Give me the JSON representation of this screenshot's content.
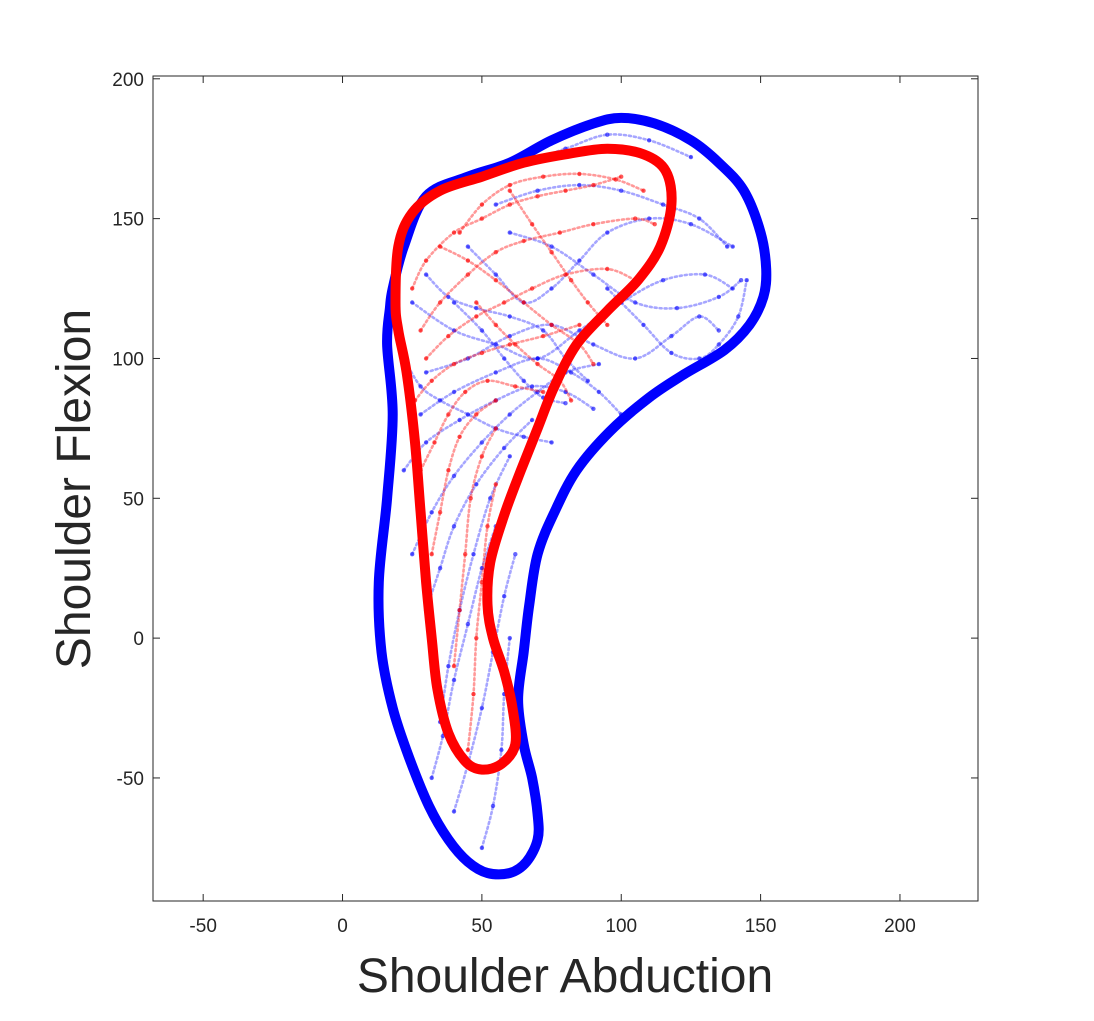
{
  "chart_data": {
    "type": "scatter",
    "title": "",
    "xlabel": "Shoulder Abduction",
    "ylabel": "Shoulder Flexion",
    "xlim": [
      -68,
      228
    ],
    "ylim": [
      -94,
      201
    ],
    "xticks": [
      -50,
      0,
      50,
      100,
      150,
      200
    ],
    "yticks": [
      -50,
      0,
      50,
      100,
      150,
      200
    ],
    "grid": false,
    "legend": "none",
    "series": [
      {
        "kind": "boundary",
        "color": "#0000ff",
        "points": [
          [
            18,
            125
          ],
          [
            22,
            140
          ],
          [
            30,
            158
          ],
          [
            45,
            165
          ],
          [
            60,
            170
          ],
          [
            75,
            178
          ],
          [
            90,
            184
          ],
          [
            100,
            186
          ],
          [
            112,
            184
          ],
          [
            125,
            178
          ],
          [
            135,
            170
          ],
          [
            144,
            160
          ],
          [
            150,
            145
          ],
          [
            152,
            132
          ],
          [
            151,
            122
          ],
          [
            146,
            112
          ],
          [
            137,
            103
          ],
          [
            122,
            94
          ],
          [
            110,
            86
          ],
          [
            96,
            74
          ],
          [
            84,
            60
          ],
          [
            76,
            45
          ],
          [
            70,
            30
          ],
          [
            67,
            12
          ],
          [
            65,
            -5
          ],
          [
            63,
            -22
          ],
          [
            65,
            -38
          ],
          [
            68,
            -50
          ],
          [
            70,
            -63
          ],
          [
            70,
            -72
          ],
          [
            66,
            -80
          ],
          [
            60,
            -84
          ],
          [
            52,
            -84
          ],
          [
            45,
            -80
          ],
          [
            38,
            -72
          ],
          [
            31,
            -60
          ],
          [
            24,
            -43
          ],
          [
            18,
            -25
          ],
          [
            14,
            -5
          ],
          [
            13,
            20
          ],
          [
            16,
            50
          ],
          [
            18,
            80
          ],
          [
            16,
            105
          ],
          [
            17,
            118
          ]
        ]
      },
      {
        "kind": "boundary",
        "color": "#ff0000",
        "points": [
          [
            19,
            120
          ],
          [
            20,
            140
          ],
          [
            25,
            152
          ],
          [
            35,
            160
          ],
          [
            50,
            165
          ],
          [
            65,
            170
          ],
          [
            80,
            173
          ],
          [
            95,
            175
          ],
          [
            108,
            173
          ],
          [
            116,
            167
          ],
          [
            118,
            155
          ],
          [
            114,
            140
          ],
          [
            106,
            128
          ],
          [
            95,
            117
          ],
          [
            84,
            105
          ],
          [
            76,
            90
          ],
          [
            70,
            75
          ],
          [
            64,
            60
          ],
          [
            58,
            44
          ],
          [
            53,
            27
          ],
          [
            52,
            12
          ],
          [
            54,
            0
          ],
          [
            58,
            -12
          ],
          [
            61,
            -25
          ],
          [
            62,
            -38
          ],
          [
            57,
            -45
          ],
          [
            50,
            -47
          ],
          [
            44,
            -44
          ],
          [
            38,
            -34
          ],
          [
            34,
            -18
          ],
          [
            32,
            0
          ],
          [
            30,
            20
          ],
          [
            28,
            45
          ],
          [
            26,
            70
          ],
          [
            23,
            95
          ],
          [
            20,
            110
          ]
        ]
      },
      {
        "kind": "traces",
        "color": "#0000ff",
        "opacity": 0.35,
        "traces": [
          [
            [
              25,
              120
            ],
            [
              40,
              110
            ],
            [
              55,
              105
            ],
            [
              70,
              100
            ],
            [
              85,
              110
            ],
            [
              100,
              120
            ],
            [
              115,
              128
            ],
            [
              130,
              130
            ],
            [
              140,
              125
            ]
          ],
          [
            [
              30,
              95
            ],
            [
              45,
              100
            ],
            [
              60,
              108
            ],
            [
              75,
              112
            ],
            [
              90,
              105
            ],
            [
              105,
              100
            ],
            [
              118,
              108
            ],
            [
              128,
              115
            ],
            [
              135,
              110
            ]
          ],
          [
            [
              28,
              80
            ],
            [
              40,
              88
            ],
            [
              55,
              95
            ],
            [
              70,
              100
            ],
            [
              82,
              95
            ],
            [
              92,
              88
            ],
            [
              100,
              80
            ]
          ],
          [
            [
              22,
              60
            ],
            [
              30,
              70
            ],
            [
              42,
              78
            ],
            [
              55,
              85
            ],
            [
              68,
              90
            ],
            [
              80,
              88
            ],
            [
              90,
              82
            ]
          ],
          [
            [
              25,
              30
            ],
            [
              32,
              45
            ],
            [
              40,
              58
            ],
            [
              50,
              70
            ],
            [
              60,
              80
            ],
            [
              70,
              88
            ],
            [
              80,
              95
            ],
            [
              92,
              98
            ]
          ],
          [
            [
              30,
              10
            ],
            [
              35,
              25
            ],
            [
              40,
              40
            ],
            [
              48,
              55
            ],
            [
              58,
              68
            ],
            [
              68,
              78
            ]
          ],
          [
            [
              35,
              -30
            ],
            [
              38,
              -10
            ],
            [
              42,
              10
            ],
            [
              47,
              30
            ],
            [
              53,
              50
            ],
            [
              60,
              65
            ]
          ],
          [
            [
              32,
              -50
            ],
            [
              36,
              -35
            ],
            [
              40,
              -15
            ],
            [
              45,
              5
            ],
            [
              50,
              25
            ],
            [
              55,
              40
            ]
          ],
          [
            [
              40,
              -62
            ],
            [
              45,
              -45
            ],
            [
              50,
              -25
            ],
            [
              54,
              -5
            ],
            [
              58,
              15
            ],
            [
              62,
              30
            ]
          ],
          [
            [
              50,
              -75
            ],
            [
              54,
              -60
            ],
            [
              57,
              -40
            ],
            [
              58,
              -20
            ],
            [
              60,
              0
            ]
          ],
          [
            [
              55,
              155
            ],
            [
              70,
              160
            ],
            [
              85,
              162
            ],
            [
              100,
              160
            ],
            [
              115,
              155
            ],
            [
              128,
              150
            ],
            [
              138,
              140
            ]
          ],
          [
            [
              60,
              145
            ],
            [
              75,
              140
            ],
            [
              90,
              130
            ],
            [
              105,
              120
            ],
            [
              120,
              118
            ],
            [
              135,
              122
            ],
            [
              143,
              128
            ]
          ],
          [
            [
              45,
              140
            ],
            [
              55,
              130
            ],
            [
              65,
              120
            ],
            [
              75,
              125
            ],
            [
              85,
              135
            ],
            [
              95,
              145
            ],
            [
              110,
              150
            ],
            [
              125,
              148
            ],
            [
              140,
              140
            ]
          ],
          [
            [
              30,
              130
            ],
            [
              38,
              122
            ],
            [
              48,
              118
            ],
            [
              60,
              115
            ],
            [
              72,
              110
            ],
            [
              80,
              100
            ],
            [
              88,
              92
            ]
          ],
          [
            [
              22,
              100
            ],
            [
              28,
              90
            ],
            [
              35,
              85
            ],
            [
              45,
              80
            ],
            [
              55,
              75
            ],
            [
              65,
              72
            ],
            [
              75,
              70
            ]
          ],
          [
            [
              65,
              170
            ],
            [
              80,
              175
            ],
            [
              95,
              180
            ],
            [
              110,
              178
            ],
            [
              125,
              172
            ]
          ],
          [
            [
              95,
              125
            ],
            [
              108,
              112
            ],
            [
              118,
              102
            ],
            [
              128,
              100
            ],
            [
              135,
              105
            ],
            [
              142,
              115
            ],
            [
              145,
              128
            ]
          ],
          [
            [
              40,
              120
            ],
            [
              50,
              110
            ],
            [
              58,
              100
            ],
            [
              65,
              92
            ],
            [
              72,
              86
            ],
            [
              80,
              84
            ]
          ]
        ]
      },
      {
        "kind": "traces",
        "color": "#ff0000",
        "opacity": 0.4,
        "traces": [
          [
            [
              25,
              125
            ],
            [
              30,
              135
            ],
            [
              40,
              145
            ],
            [
              50,
              150
            ],
            [
              60,
              155
            ],
            [
              70,
              158
            ],
            [
              80,
              160
            ],
            [
              90,
              162
            ],
            [
              100,
              165
            ]
          ],
          [
            [
              28,
              110
            ],
            [
              35,
              120
            ],
            [
              45,
              130
            ],
            [
              55,
              138
            ],
            [
              65,
              142
            ],
            [
              78,
              145
            ],
            [
              90,
              148
            ],
            [
              105,
              150
            ],
            [
              112,
              148
            ]
          ],
          [
            [
              30,
              100
            ],
            [
              38,
              108
            ],
            [
              48,
              115
            ],
            [
              58,
              120
            ],
            [
              68,
              125
            ],
            [
              80,
              130
            ],
            [
              95,
              132
            ],
            [
              105,
              128
            ]
          ],
          [
            [
              26,
              85
            ],
            [
              32,
              92
            ],
            [
              40,
              98
            ],
            [
              50,
              102
            ],
            [
              60,
              105
            ],
            [
              72,
              108
            ],
            [
              85,
              112
            ]
          ],
          [
            [
              28,
              60
            ],
            [
              33,
              70
            ],
            [
              38,
              80
            ],
            [
              44,
              88
            ],
            [
              52,
              92
            ],
            [
              62,
              90
            ],
            [
              72,
              88
            ]
          ],
          [
            [
              32,
              30
            ],
            [
              35,
              45
            ],
            [
              38,
              60
            ],
            [
              42,
              72
            ],
            [
              48,
              80
            ],
            [
              55,
              85
            ]
          ],
          [
            [
              40,
              -10
            ],
            [
              42,
              10
            ],
            [
              44,
              30
            ],
            [
              46,
              50
            ],
            [
              50,
              65
            ],
            [
              55,
              75
            ]
          ],
          [
            [
              45,
              -40
            ],
            [
              47,
              -20
            ],
            [
              48,
              0
            ],
            [
              50,
              20
            ],
            [
              52,
              40
            ],
            [
              55,
              55
            ]
          ],
          [
            [
              42,
              145
            ],
            [
              50,
              155
            ],
            [
              60,
              162
            ],
            [
              72,
              165
            ],
            [
              85,
              166
            ],
            [
              98,
              164
            ],
            [
              108,
              160
            ]
          ],
          [
            [
              35,
              140
            ],
            [
              45,
              135
            ],
            [
              55,
              128
            ],
            [
              65,
              120
            ],
            [
              75,
              112
            ],
            [
              85,
              105
            ],
            [
              90,
              98
            ]
          ],
          [
            [
              60,
              160
            ],
            [
              68,
              148
            ],
            [
              75,
              138
            ],
            [
              82,
              128
            ],
            [
              88,
              120
            ],
            [
              95,
              112
            ]
          ],
          [
            [
              48,
              120
            ],
            [
              55,
              112
            ],
            [
              62,
              105
            ],
            [
              70,
              98
            ],
            [
              78,
              92
            ],
            [
              82,
              85
            ]
          ]
        ]
      }
    ]
  }
}
